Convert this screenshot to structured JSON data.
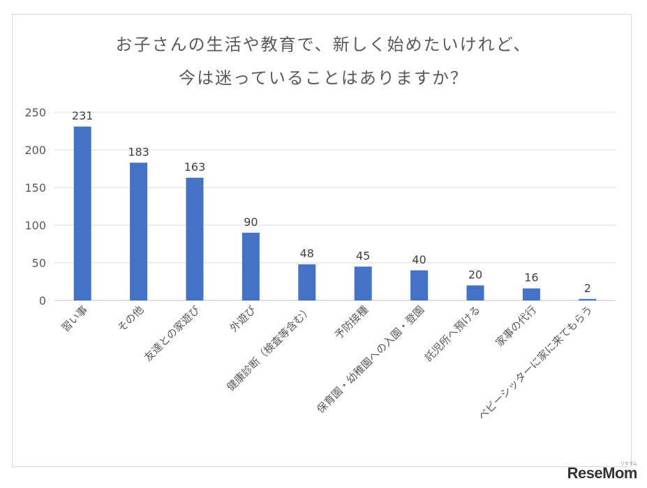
{
  "chart_data": {
    "type": "bar",
    "title_lines": [
      "お子さんの生活や教育で、新しく始めたいけれど、",
      "今は迷っていることはありますか？"
    ],
    "categories": [
      "習い事",
      "その他",
      "友達との家遊び",
      "外遊び",
      "健康診断（検査等含む）",
      "予防接種",
      "保育園・幼稚園への入園・登園",
      "託児所へ預ける",
      "家事の代行",
      "ベビーシッターに家に来てもらう"
    ],
    "values": [
      231,
      183,
      163,
      90,
      48,
      45,
      40,
      20,
      16,
      2
    ],
    "ylim": [
      0,
      250
    ],
    "yticks": [
      0,
      50,
      100,
      150,
      200,
      250
    ],
    "grid": true,
    "legend": "none",
    "bar_color": "#4472c4"
  },
  "branding": {
    "logo": "ReseMom",
    "logo_small": "リセマム"
  }
}
